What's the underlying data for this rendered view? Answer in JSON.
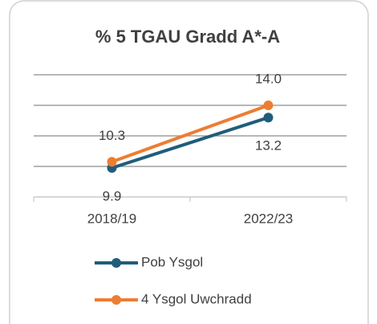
{
  "chart_data": {
    "type": "line",
    "title": "% 5 TGAU Gradd A*-A",
    "categories": [
      "2018/19",
      "2022/23"
    ],
    "series": [
      {
        "name": "Pob Ysgol",
        "color": "#1f5d7b",
        "values": [
          9.9,
          13.2
        ]
      },
      {
        "name": "4 Ysgol Uwchradd",
        "color": "#ed7d31",
        "values": [
          10.3,
          14.0
        ],
        "value_labels": [
          "10.3",
          "14.0"
        ]
      }
    ],
    "ylim": [
      8,
      16
    ],
    "yticks": [
      8,
      10,
      12,
      14,
      16
    ],
    "grid": true,
    "legend": "bottom"
  }
}
